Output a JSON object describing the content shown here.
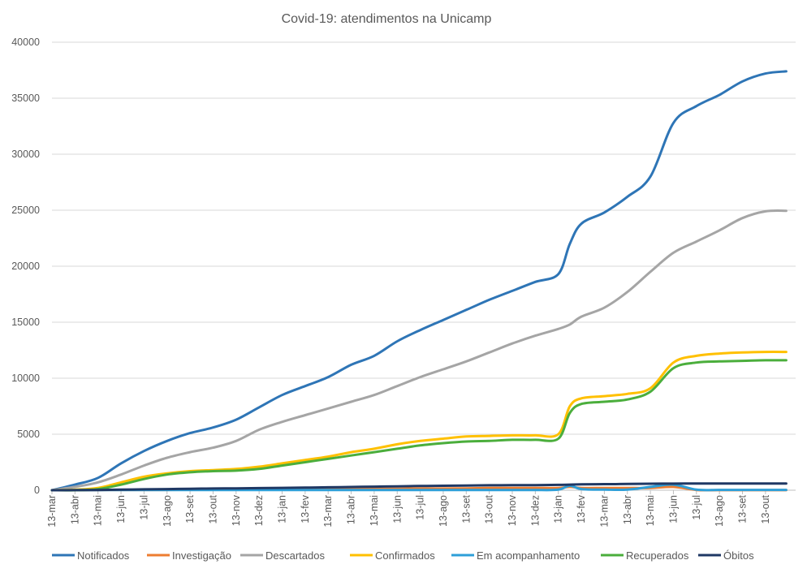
{
  "chart_data": {
    "type": "line",
    "title": "Covid-19: atendimentos  na Unicamp",
    "xlabel": "",
    "ylabel": "",
    "ylim": [
      0,
      40000
    ],
    "yticks": [
      "0",
      "5000",
      "10000",
      "15000",
      "20000",
      "25000",
      "30000",
      "35000",
      "40000"
    ],
    "xticks": [
      "13-mar",
      "13-abr",
      "13-mai",
      "13-jun",
      "13-jul",
      "13-ago",
      "13-set",
      "13-out",
      "13-nov",
      "13-dez",
      "13-jan",
      "13-fev",
      "13-mar",
      "13-abr",
      "13-mai",
      "13-jun",
      "13-jul",
      "13-ago",
      "13-set",
      "13-out",
      "13-nov",
      "13-dez",
      "13-jan",
      "13-fev",
      "13-mar",
      "13-abr",
      "13-mai",
      "13-jun",
      "13-jul",
      "13-ago",
      "13-set",
      "13-out"
    ],
    "grid": true,
    "legend_position": "bottom",
    "x_month_index": [
      0,
      1,
      2,
      3,
      4,
      5,
      6,
      7,
      8,
      9,
      10,
      11,
      12,
      13,
      14,
      15,
      16,
      17,
      18,
      19,
      20,
      21,
      22,
      22.5,
      23,
      24,
      25,
      26,
      27,
      28,
      29,
      30,
      31,
      31.9
    ],
    "series": [
      {
        "name": "Notificados",
        "color": "#2E75B6",
        "values": [
          0,
          500,
          1100,
          2400,
          3500,
          4400,
          5100,
          5600,
          6300,
          7400,
          8500,
          9300,
          10100,
          11200,
          12000,
          13300,
          14300,
          15200,
          16100,
          17000,
          17800,
          18600,
          19300,
          22000,
          23800,
          24800,
          26200,
          28000,
          32800,
          34300,
          35300,
          36500,
          37200,
          37400
        ]
      },
      {
        "name": "Investigação",
        "color": "#ED7D31",
        "values": [
          0,
          20,
          30,
          30,
          30,
          30,
          40,
          40,
          50,
          60,
          70,
          80,
          90,
          100,
          120,
          130,
          150,
          150,
          170,
          200,
          200,
          200,
          200,
          300,
          200,
          200,
          200,
          200,
          300,
          20,
          10,
          10,
          10,
          10
        ]
      },
      {
        "name": "Descartados",
        "color": "#A5A5A5",
        "values": [
          0,
          300,
          700,
          1400,
          2200,
          2900,
          3400,
          3800,
          4400,
          5400,
          6100,
          6700,
          7300,
          7900,
          8500,
          9300,
          10100,
          10800,
          11500,
          12300,
          13100,
          13800,
          14400,
          14800,
          15500,
          16300,
          17700,
          19500,
          21200,
          22200,
          23200,
          24300,
          24900,
          24950
        ]
      },
      {
        "name": "Confirmados",
        "color": "#FFC000",
        "values": [
          0,
          50,
          200,
          700,
          1200,
          1500,
          1700,
          1800,
          1900,
          2100,
          2400,
          2700,
          3000,
          3400,
          3700,
          4100,
          4400,
          4600,
          4800,
          4850,
          4900,
          4900,
          5000,
          7500,
          8200,
          8400,
          8600,
          9100,
          11400,
          12000,
          12200,
          12300,
          12350,
          12350
        ]
      },
      {
        "name": "Em acompanhamento",
        "color": "#2E9FD8",
        "values": [
          0,
          10,
          20,
          20,
          20,
          20,
          20,
          20,
          20,
          20,
          20,
          20,
          20,
          20,
          20,
          20,
          20,
          20,
          20,
          20,
          20,
          20,
          50,
          400,
          100,
          50,
          50,
          300,
          500,
          50,
          30,
          30,
          30,
          30
        ]
      },
      {
        "name": "Recuperados",
        "color": "#4BAE3C",
        "values": [
          0,
          0,
          100,
          500,
          1000,
          1400,
          1600,
          1700,
          1750,
          1900,
          2200,
          2500,
          2800,
          3100,
          3400,
          3700,
          4000,
          4200,
          4350,
          4400,
          4500,
          4500,
          4600,
          6900,
          7700,
          7900,
          8100,
          8800,
          10900,
          11400,
          11500,
          11550,
          11600,
          11600
        ]
      },
      {
        "name": "Óbitos",
        "color": "#1F3864",
        "values": [
          0,
          5,
          20,
          50,
          80,
          100,
          130,
          150,
          170,
          190,
          210,
          230,
          260,
          290,
          320,
          350,
          380,
          400,
          420,
          440,
          450,
          460,
          480,
          500,
          520,
          540,
          560,
          580,
          590,
          600,
          600,
          600,
          600,
          600
        ]
      }
    ]
  }
}
